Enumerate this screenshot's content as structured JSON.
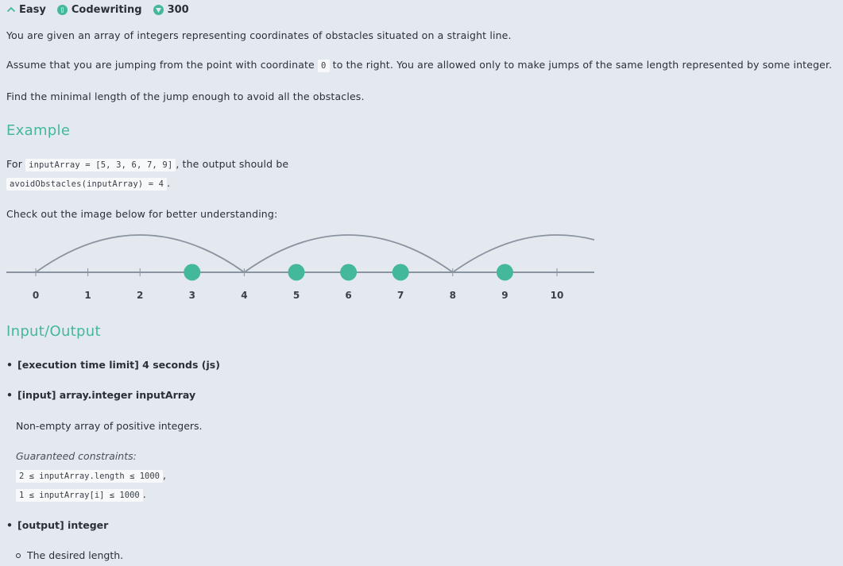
{
  "header": {
    "difficulty": "Easy",
    "category": "Codewriting",
    "points": "300"
  },
  "description": {
    "line1": "You are given an array of integers representing coordinates of obstacles situated on a straight line.",
    "line2_pre": "Assume that you are jumping from the point with coordinate ",
    "line2_code": "0",
    "line2_post": " to the right. You are allowed only to make jumps of the same length represented by some integer.",
    "line3": "Find the minimal length of the jump enough to avoid all the obstacles."
  },
  "example": {
    "heading": "Example",
    "for_pre": "For ",
    "input_code": "inputArray = [5, 3, 6, 7, 9]",
    "for_post": ", the output should be",
    "output_code": "avoidObstacles(inputArray) = 4",
    "output_post": ".",
    "image_note": "Check out the image below for better understanding:"
  },
  "chart_data": {
    "type": "scatter",
    "axis_labels": [
      "0",
      "1",
      "2",
      "3",
      "4",
      "5",
      "6",
      "7",
      "8",
      "9",
      "10"
    ],
    "obstacles": [
      3,
      5,
      6,
      7,
      9
    ],
    "jump_length": 4,
    "jump_starts": [
      0,
      4,
      8
    ],
    "colors": {
      "obstacle": "#43b89a",
      "line": "#8a93a0"
    }
  },
  "io": {
    "heading": "Input/Output",
    "time_limit": "[execution time limit] 4 seconds (js)",
    "input_label": "[input] array.integer inputArray",
    "input_desc": "Non-empty array of positive integers.",
    "constraints_label": "Guaranteed constraints:",
    "constraint1": "2 ≤ inputArray.length ≤ 1000",
    "constraint1_post": ",",
    "constraint2": "1 ≤ inputArray[i] ≤ 1000",
    "constraint2_post": ".",
    "output_label": "[output] integer",
    "output_desc": "The desired length."
  }
}
